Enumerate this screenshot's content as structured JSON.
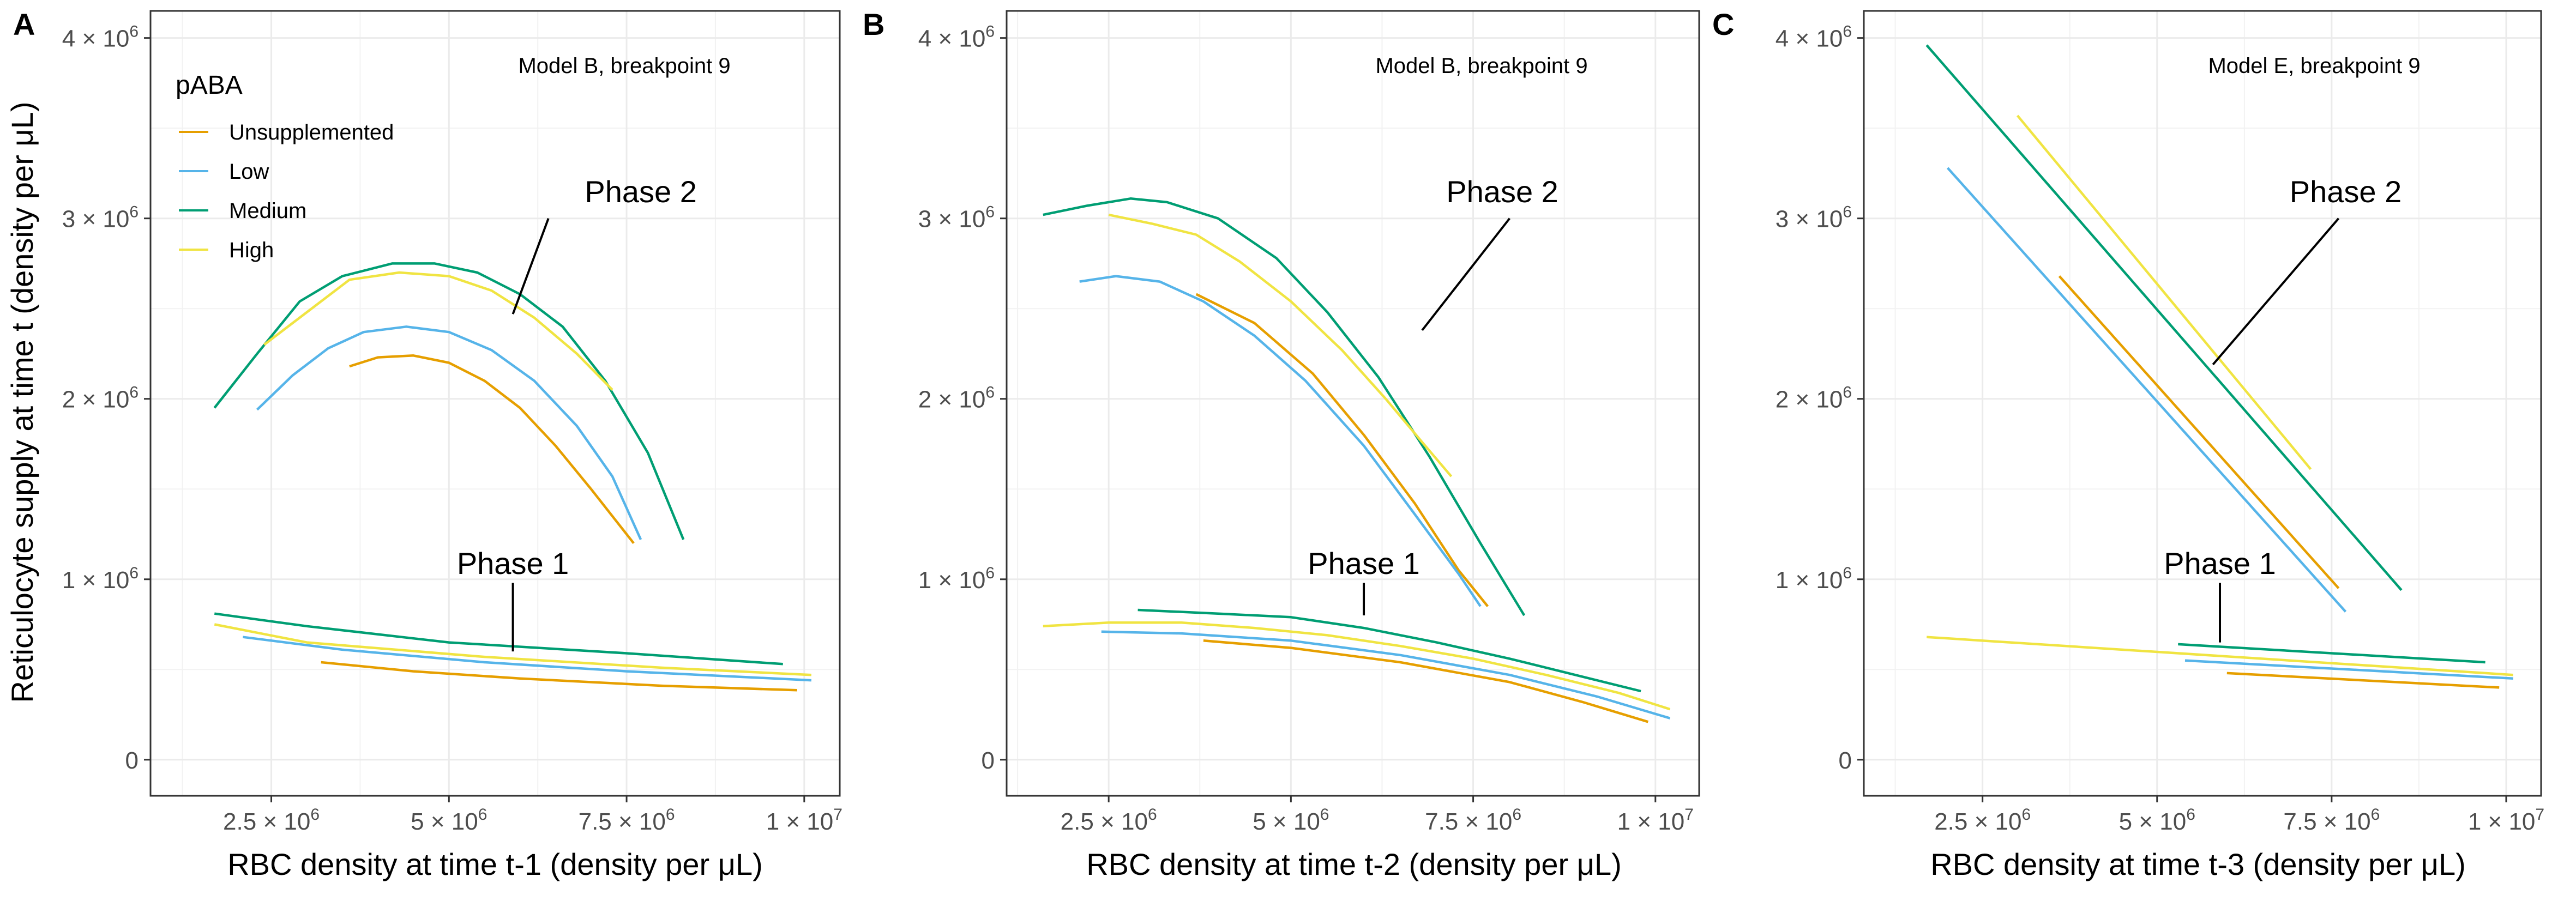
{
  "figure": {
    "y_axis_title": "Reticulocyte supply at time t (density per μL)"
  },
  "legend": {
    "title": "pABA",
    "entries": [
      {
        "name": "Unsupplemented",
        "color": "#E69F00"
      },
      {
        "name": "Low",
        "color": "#56B4E9"
      },
      {
        "name": "Medium",
        "color": "#009E73"
      },
      {
        "name": "High",
        "color": "#F0E442"
      }
    ]
  },
  "y_tick_labels": [
    {
      "value": 0,
      "mant": "0",
      "exp": ""
    },
    {
      "value": 1000000,
      "mant": "1 × 10",
      "exp": "6"
    },
    {
      "value": 2000000,
      "mant": "2 × 10",
      "exp": "6"
    },
    {
      "value": 3000000,
      "mant": "3 × 10",
      "exp": "6"
    },
    {
      "value": 4000000,
      "mant": "4 × 10",
      "exp": "6"
    }
  ],
  "x_tick_labels": [
    {
      "value": 2500000,
      "mant": "2.5 × 10",
      "exp": "6"
    },
    {
      "value": 5000000,
      "mant": "5 × 10",
      "exp": "6"
    },
    {
      "value": 7500000,
      "mant": "7.5 × 10",
      "exp": "6"
    },
    {
      "value": 10000000,
      "mant": "1 × 10",
      "exp": "7"
    }
  ],
  "chart_data": [
    {
      "type": "line",
      "panel": "A",
      "annotation": "Model B, breakpoint 9",
      "xlabel": "RBC density at time t-1 (density per μL)",
      "ylabel": "Reticulocyte supply at time t (density per μL)",
      "xlim": [
        800000,
        10500000
      ],
      "ylim": [
        -200000,
        4150000
      ],
      "grid": true,
      "legend_position": "top-left",
      "phase_labels": [
        {
          "text": "Phase 2",
          "x": 7700000,
          "y": 3150000,
          "pointer": [
            6400000,
            3000000,
            5900000,
            2470000
          ]
        },
        {
          "text": "Phase 1",
          "x": 5900000,
          "y": 1090000,
          "pointer": [
            5900000,
            980000,
            5900000,
            600000
          ]
        }
      ],
      "series": [
        {
          "name": "Unsupplemented",
          "phase": 2,
          "x": [
            3600000,
            4000000,
            4500000,
            5000000,
            5500000,
            6000000,
            6500000,
            7000000,
            7600000
          ],
          "y": [
            2180000,
            2230000,
            2240000,
            2200000,
            2100000,
            1950000,
            1740000,
            1500000,
            1200000
          ]
        },
        {
          "name": "Low",
          "phase": 2,
          "x": [
            2300000,
            2800000,
            3300000,
            3800000,
            4400000,
            5000000,
            5600000,
            6200000,
            6800000,
            7300000,
            7700000
          ],
          "y": [
            1940000,
            2130000,
            2280000,
            2370000,
            2400000,
            2370000,
            2270000,
            2100000,
            1850000,
            1570000,
            1220000
          ]
        },
        {
          "name": "Medium",
          "phase": 2,
          "x": [
            1700000,
            2300000,
            2900000,
            3500000,
            4200000,
            4800000,
            5400000,
            6000000,
            6600000,
            7200000,
            7800000,
            8300000
          ],
          "y": [
            1950000,
            2250000,
            2540000,
            2680000,
            2750000,
            2750000,
            2700000,
            2580000,
            2400000,
            2100000,
            1700000,
            1220000
          ]
        },
        {
          "name": "High",
          "phase": 2,
          "x": [
            2400000,
            3000000,
            3600000,
            4300000,
            5000000,
            5600000,
            6200000,
            6800000,
            7300000
          ],
          "y": [
            2300000,
            2480000,
            2660000,
            2700000,
            2680000,
            2600000,
            2450000,
            2250000,
            2050000
          ]
        },
        {
          "name": "Unsupplemented",
          "phase": 1,
          "x": [
            3200000,
            4500000,
            6000000,
            8000000,
            9900000
          ],
          "y": [
            540000,
            490000,
            450000,
            410000,
            385000
          ]
        },
        {
          "name": "Low",
          "phase": 1,
          "x": [
            2100000,
            3500000,
            5500000,
            7500000,
            10100000
          ],
          "y": [
            680000,
            610000,
            540000,
            490000,
            440000
          ]
        },
        {
          "name": "Medium",
          "phase": 1,
          "x": [
            1700000,
            3000000,
            5000000,
            7500000,
            9700000
          ],
          "y": [
            810000,
            740000,
            650000,
            590000,
            530000
          ]
        },
        {
          "name": "High",
          "phase": 1,
          "x": [
            1700000,
            3000000,
            5500000,
            8000000,
            10100000
          ],
          "y": [
            750000,
            650000,
            570000,
            510000,
            470000
          ]
        }
      ]
    },
    {
      "type": "line",
      "panel": "B",
      "annotation": "Model B, breakpoint 9",
      "xlabel": "RBC density at time t-2 (density per μL)",
      "ylabel": "",
      "xlim": [
        1100000,
        10600000
      ],
      "ylim": [
        -200000,
        4150000
      ],
      "grid": true,
      "phase_labels": [
        {
          "text": "Phase 2",
          "x": 7900000,
          "y": 3150000,
          "pointer": [
            8000000,
            3000000,
            6800000,
            2380000
          ]
        },
        {
          "text": "Phase 1",
          "x": 6000000,
          "y": 1090000,
          "pointer": [
            6000000,
            980000,
            6000000,
            800000
          ]
        }
      ],
      "series": [
        {
          "name": "Unsupplemented",
          "phase": 2,
          "x": [
            3700000,
            4500000,
            5300000,
            6000000,
            6700000,
            7300000,
            7700000
          ],
          "y": [
            2580000,
            2420000,
            2140000,
            1800000,
            1420000,
            1050000,
            850000
          ]
        },
        {
          "name": "Low",
          "phase": 2,
          "x": [
            2100000,
            2600000,
            3200000,
            3800000,
            4500000,
            5200000,
            6000000,
            6700000,
            7300000,
            7600000
          ],
          "y": [
            2650000,
            2680000,
            2650000,
            2540000,
            2350000,
            2100000,
            1740000,
            1360000,
            1030000,
            850000
          ]
        },
        {
          "name": "Medium",
          "phase": 2,
          "x": [
            1600000,
            2200000,
            2800000,
            3300000,
            4000000,
            4800000,
            5500000,
            6200000,
            6900000,
            7600000,
            8200000
          ],
          "y": [
            3020000,
            3070000,
            3110000,
            3090000,
            3000000,
            2780000,
            2480000,
            2120000,
            1680000,
            1200000,
            800000
          ]
        },
        {
          "name": "High",
          "phase": 2,
          "x": [
            2500000,
            3100000,
            3700000,
            4300000,
            5000000,
            5700000,
            6300000,
            6800000,
            7200000
          ],
          "y": [
            3020000,
            2970000,
            2910000,
            2760000,
            2540000,
            2270000,
            2000000,
            1760000,
            1570000
          ]
        },
        {
          "name": "Unsupplemented",
          "phase": 1,
          "x": [
            3800000,
            5000000,
            6500000,
            8000000,
            9000000,
            9900000
          ],
          "y": [
            660000,
            620000,
            540000,
            430000,
            320000,
            210000
          ]
        },
        {
          "name": "Low",
          "phase": 1,
          "x": [
            2400000,
            3500000,
            5000000,
            6500000,
            8000000,
            9200000,
            10200000
          ],
          "y": [
            710000,
            700000,
            660000,
            580000,
            470000,
            350000,
            230000
          ]
        },
        {
          "name": "Medium",
          "phase": 1,
          "x": [
            2900000,
            4000000,
            5000000,
            6000000,
            7000000,
            8000000,
            8900000,
            9800000
          ],
          "y": [
            830000,
            810000,
            790000,
            730000,
            650000,
            560000,
            470000,
            380000
          ]
        },
        {
          "name": "High",
          "phase": 1,
          "x": [
            1600000,
            2500000,
            3500000,
            4500000,
            5500000,
            6500000,
            7500000,
            8500000,
            9500000,
            10200000
          ],
          "y": [
            740000,
            760000,
            760000,
            730000,
            690000,
            630000,
            560000,
            470000,
            370000,
            280000
          ]
        }
      ]
    },
    {
      "type": "line",
      "panel": "C",
      "annotation": "Model E, breakpoint 9",
      "xlabel": "RBC density at time t-3 (density per μL)",
      "ylabel": "",
      "xlim": [
        800000,
        10500000
      ],
      "ylim": [
        -200000,
        4150000
      ],
      "grid": true,
      "phase_labels": [
        {
          "text": "Phase 2",
          "x": 7700000,
          "y": 3150000,
          "pointer": [
            7600000,
            3000000,
            5800000,
            2190000
          ]
        },
        {
          "text": "Phase 1",
          "x": 5900000,
          "y": 1090000,
          "pointer": [
            5900000,
            980000,
            5900000,
            650000
          ]
        }
      ],
      "series": [
        {
          "name": "Unsupplemented",
          "phase": 2,
          "x": [
            3600000,
            7600000
          ],
          "y": [
            2680000,
            950000
          ]
        },
        {
          "name": "Low",
          "phase": 2,
          "x": [
            2000000,
            7700000
          ],
          "y": [
            3280000,
            820000
          ]
        },
        {
          "name": "Medium",
          "phase": 2,
          "x": [
            1700000,
            8500000
          ],
          "y": [
            3960000,
            940000
          ]
        },
        {
          "name": "High",
          "phase": 2,
          "x": [
            3000000,
            7200000
          ],
          "y": [
            3570000,
            1610000
          ]
        },
        {
          "name": "Unsupplemented",
          "phase": 1,
          "x": [
            6000000,
            9900000
          ],
          "y": [
            480000,
            400000
          ]
        },
        {
          "name": "Low",
          "phase": 1,
          "x": [
            5400000,
            10100000
          ],
          "y": [
            550000,
            450000
          ]
        },
        {
          "name": "Medium",
          "phase": 1,
          "x": [
            5300000,
            9700000
          ],
          "y": [
            640000,
            540000
          ]
        },
        {
          "name": "High",
          "phase": 1,
          "x": [
            1700000,
            10100000
          ],
          "y": [
            680000,
            470000
          ]
        }
      ]
    }
  ]
}
